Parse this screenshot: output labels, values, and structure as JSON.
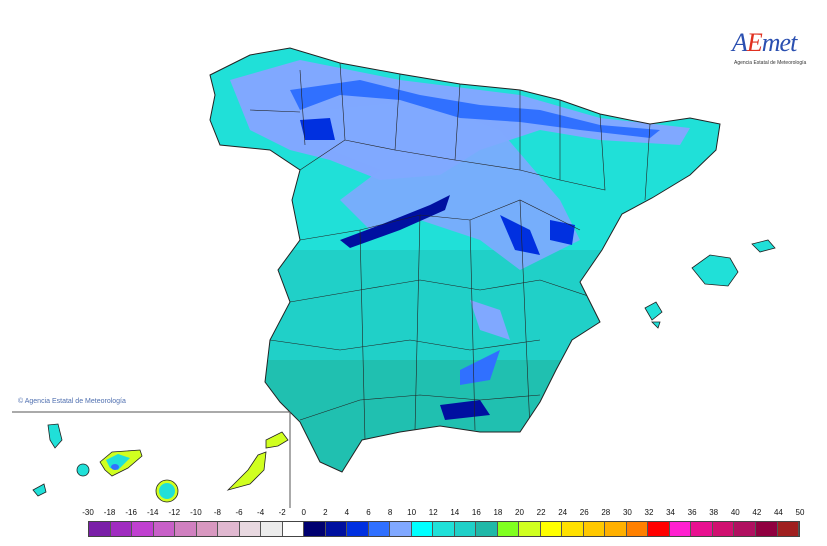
{
  "logo": {
    "brand": "AEmet",
    "subtitle": "Agencia Estatal de Meteorología"
  },
  "copyright": "© Agencia Estatal de Meteorología",
  "legend": {
    "labels": [
      "-30",
      "-18",
      "-16",
      "-14",
      "-12",
      "-10",
      "-8",
      "-6",
      "-4",
      "-2",
      "0",
      "2",
      "4",
      "6",
      "8",
      "10",
      "12",
      "14",
      "16",
      "18",
      "20",
      "22",
      "24",
      "26",
      "28",
      "30",
      "32",
      "34",
      "36",
      "38",
      "40",
      "42",
      "44",
      "50"
    ],
    "colors": [
      "#7a1fa8",
      "#a02cc0",
      "#c040d0",
      "#c860c8",
      "#d080c0",
      "#d898c0",
      "#e0b8d0",
      "#e8d8e0",
      "#ececec",
      "#ffffff",
      "#000070",
      "#0010a0",
      "#0030e0",
      "#3070ff",
      "#80a8ff",
      "#00ffff",
      "#20e0d8",
      "#20d0c8",
      "#20b8a8",
      "#80ff20",
      "#d0ff20",
      "#ffff00",
      "#ffe000",
      "#ffc800",
      "#ffb000",
      "#ff8000",
      "#ff0000",
      "#ff20d0",
      "#e81090",
      "#d01070",
      "#b01060",
      "#900040",
      "#a02020"
    ]
  }
}
